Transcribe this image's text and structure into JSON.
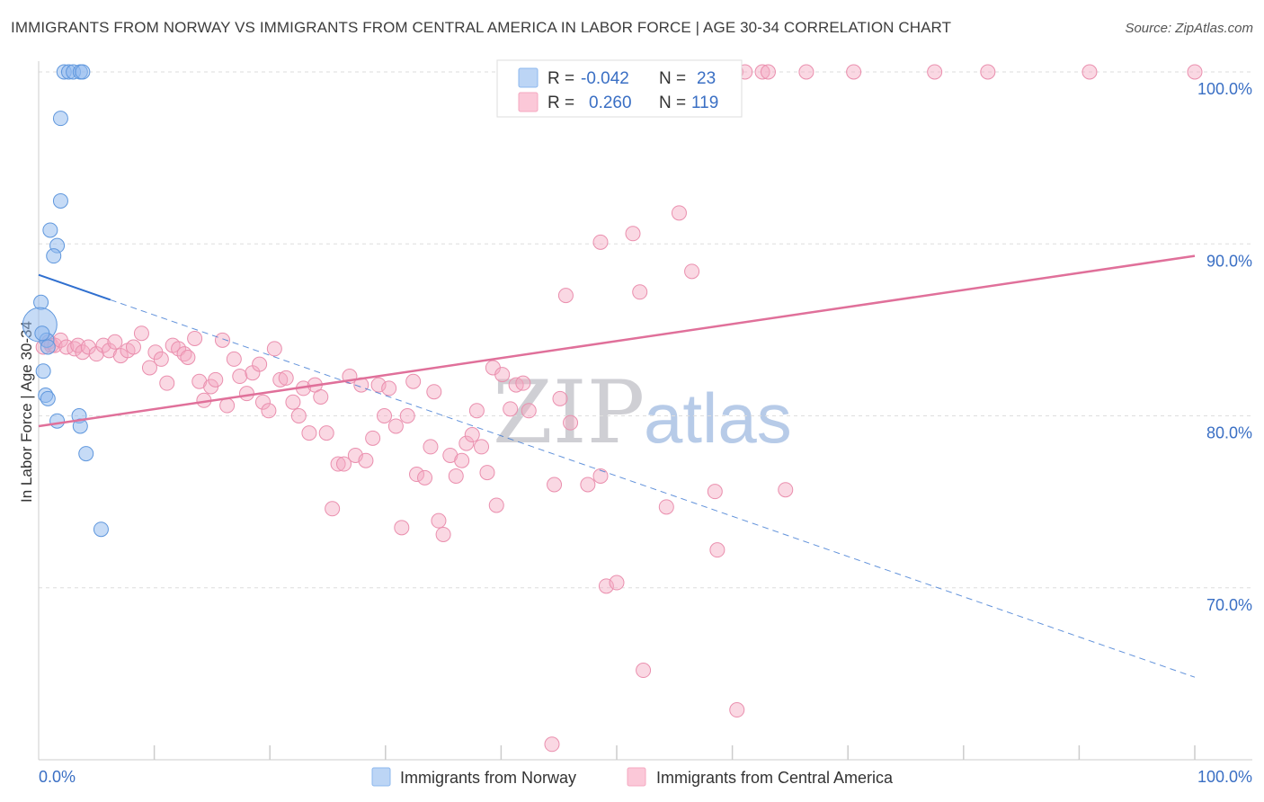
{
  "title": "IMMIGRANTS FROM NORWAY VS IMMIGRANTS FROM CENTRAL AMERICA IN LABOR FORCE | AGE 30-34 CORRELATION CHART",
  "source": "Source: ZipAtlas.com",
  "watermark": {
    "zip": "ZIP",
    "atlas": "atlas"
  },
  "stats": {
    "r_label": "R =",
    "n_label": "N =",
    "norway": {
      "r": "-0.042",
      "n": "23"
    },
    "central_america": {
      "r": "0.260",
      "n": "119"
    }
  },
  "chart_data": {
    "type": "scatter",
    "xlabel": "",
    "ylabel": "In Labor Force | Age 30-34",
    "xlim": [
      0,
      100
    ],
    "ylim": [
      60,
      100
    ],
    "x_tick_labels": [
      "0.0%",
      "100.0%"
    ],
    "y_ticks": [
      70,
      80,
      90,
      100
    ],
    "y_tick_labels": [
      "70.0%",
      "80.0%",
      "90.0%",
      "100.0%"
    ],
    "grid": true,
    "legend_position": "bottom",
    "colors": {
      "norway": "#8db8ee",
      "central_america": "#f4a8c0",
      "norway_line": "#2f6fcf",
      "central_america_line": "#e0709a"
    },
    "series": [
      {
        "name": "Immigrants from Norway",
        "color": "#8db8ee",
        "trend": {
          "x": [
            0,
            100
          ],
          "y": [
            88.2,
            64.8
          ],
          "solid_until_x": 6.2
        },
        "points": [
          [
            2.2,
            100
          ],
          [
            2.6,
            100
          ],
          [
            3.0,
            100
          ],
          [
            3.6,
            100
          ],
          [
            3.8,
            100
          ],
          [
            1.9,
            97.3
          ],
          [
            1.9,
            92.5
          ],
          [
            1.0,
            90.8
          ],
          [
            1.6,
            89.9
          ],
          [
            1.3,
            89.3
          ],
          [
            0.2,
            86.6
          ],
          [
            0.1,
            85.3
          ],
          [
            0.7,
            84.4
          ],
          [
            0.8,
            84.0
          ],
          [
            0.4,
            82.6
          ],
          [
            0.6,
            81.2
          ],
          [
            0.8,
            81.0
          ],
          [
            1.6,
            79.7
          ],
          [
            3.5,
            80.0
          ],
          [
            3.6,
            79.4
          ],
          [
            4.1,
            77.8
          ],
          [
            5.4,
            73.4
          ],
          [
            0.3,
            84.8
          ]
        ]
      },
      {
        "name": "Immigrants from Central America",
        "color": "#f4a8c0",
        "trend": {
          "x": [
            0,
            100
          ],
          "y": [
            79.4,
            89.3
          ]
        },
        "points": [
          [
            0.4,
            84.0
          ],
          [
            0.9,
            84.3
          ],
          [
            1.1,
            84.1
          ],
          [
            1.4,
            84.1
          ],
          [
            1.9,
            84.4
          ],
          [
            2.4,
            84.0
          ],
          [
            3.1,
            83.9
          ],
          [
            3.4,
            84.1
          ],
          [
            3.8,
            83.7
          ],
          [
            4.3,
            84.0
          ],
          [
            5.0,
            83.6
          ],
          [
            5.6,
            84.1
          ],
          [
            6.1,
            83.8
          ],
          [
            6.6,
            84.3
          ],
          [
            7.1,
            83.5
          ],
          [
            7.7,
            83.8
          ],
          [
            8.2,
            84.0
          ],
          [
            8.9,
            84.8
          ],
          [
            9.6,
            82.8
          ],
          [
            10.1,
            83.7
          ],
          [
            10.6,
            83.3
          ],
          [
            11.1,
            81.9
          ],
          [
            11.6,
            84.1
          ],
          [
            12.1,
            83.9
          ],
          [
            12.6,
            83.6
          ],
          [
            12.9,
            83.4
          ],
          [
            13.5,
            84.5
          ],
          [
            13.9,
            82.0
          ],
          [
            14.3,
            80.9
          ],
          [
            14.9,
            81.7
          ],
          [
            15.3,
            82.1
          ],
          [
            15.9,
            84.4
          ],
          [
            16.3,
            80.6
          ],
          [
            16.9,
            83.3
          ],
          [
            17.4,
            82.3
          ],
          [
            18.0,
            81.3
          ],
          [
            18.5,
            82.5
          ],
          [
            19.1,
            83.0
          ],
          [
            19.4,
            80.8
          ],
          [
            19.9,
            80.3
          ],
          [
            20.4,
            83.9
          ],
          [
            20.9,
            82.1
          ],
          [
            21.4,
            82.2
          ],
          [
            22.0,
            80.8
          ],
          [
            22.5,
            80.0
          ],
          [
            22.9,
            81.6
          ],
          [
            23.4,
            79.0
          ],
          [
            23.9,
            81.8
          ],
          [
            24.4,
            81.1
          ],
          [
            24.9,
            79.0
          ],
          [
            25.4,
            74.6
          ],
          [
            25.9,
            77.2
          ],
          [
            26.4,
            77.2
          ],
          [
            26.9,
            82.3
          ],
          [
            27.4,
            77.7
          ],
          [
            27.9,
            81.8
          ],
          [
            28.3,
            77.4
          ],
          [
            28.9,
            78.7
          ],
          [
            29.4,
            81.8
          ],
          [
            29.9,
            80.0
          ],
          [
            30.3,
            81.6
          ],
          [
            30.9,
            79.4
          ],
          [
            31.4,
            73.5
          ],
          [
            31.9,
            80.0
          ],
          [
            32.4,
            82.0
          ],
          [
            32.7,
            76.6
          ],
          [
            33.4,
            76.4
          ],
          [
            33.9,
            78.2
          ],
          [
            34.2,
            81.4
          ],
          [
            34.6,
            73.9
          ],
          [
            35.0,
            73.1
          ],
          [
            35.6,
            77.7
          ],
          [
            36.1,
            76.5
          ],
          [
            36.6,
            77.4
          ],
          [
            37.0,
            78.4
          ],
          [
            37.5,
            78.9
          ],
          [
            37.9,
            80.3
          ],
          [
            38.3,
            78.2
          ],
          [
            38.8,
            76.7
          ],
          [
            39.3,
            82.8
          ],
          [
            39.6,
            74.8
          ],
          [
            40.1,
            82.4
          ],
          [
            40.8,
            80.4
          ],
          [
            41.3,
            81.8
          ],
          [
            41.9,
            81.9
          ],
          [
            42.4,
            80.3
          ],
          [
            44.6,
            76.0
          ],
          [
            45.1,
            81.0
          ],
          [
            45.6,
            87.0
          ],
          [
            46.0,
            79.6
          ],
          [
            47.5,
            76.0
          ],
          [
            48.6,
            76.5
          ],
          [
            48.6,
            90.1
          ],
          [
            49.1,
            70.1
          ],
          [
            50.0,
            70.3
          ],
          [
            51.4,
            90.6
          ],
          [
            52.0,
            87.2
          ],
          [
            52.3,
            65.2
          ],
          [
            54.3,
            74.7
          ],
          [
            55.4,
            91.8
          ],
          [
            56.5,
            88.4
          ],
          [
            58.5,
            75.6
          ],
          [
            58.7,
            72.2
          ],
          [
            60.4,
            62.9
          ],
          [
            64.6,
            75.7
          ],
          [
            44.4,
            60.9
          ],
          [
            47.8,
            100
          ],
          [
            53.0,
            100
          ],
          [
            53.6,
            100
          ],
          [
            60.3,
            100
          ],
          [
            61.1,
            100
          ],
          [
            62.6,
            100
          ],
          [
            63.1,
            100
          ],
          [
            66.4,
            100
          ],
          [
            70.5,
            100
          ],
          [
            77.5,
            100
          ],
          [
            82.1,
            100
          ],
          [
            90.9,
            100
          ],
          [
            100.0,
            100
          ]
        ]
      }
    ]
  }
}
